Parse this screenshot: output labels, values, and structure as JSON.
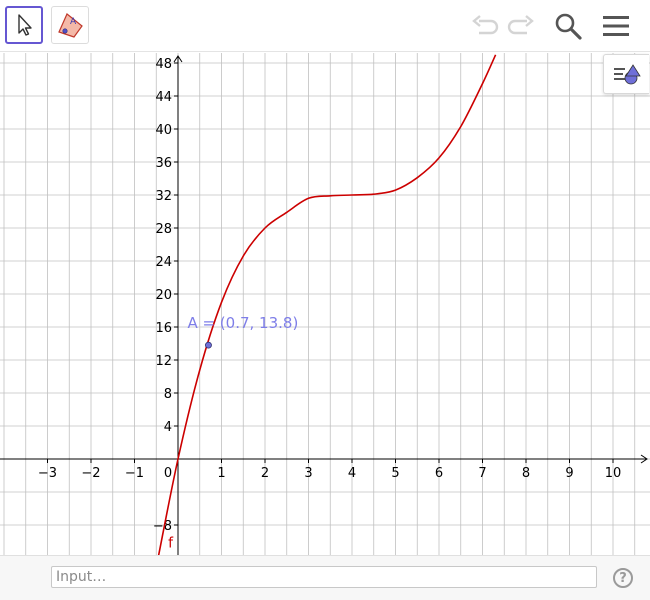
{
  "toolbar": {
    "tools": [
      {
        "icon": "cursor-arrow-icon",
        "active": true
      },
      {
        "icon": "polygon-tool-icon",
        "active": false
      }
    ],
    "right_icons": [
      "undo-icon",
      "redo-icon",
      "search-icon",
      "hamburger-menu-icon"
    ]
  },
  "style_bar_icon": "style-bar-toggle-icon",
  "input_bar": {
    "placeholder": "Input…",
    "help_label": "?"
  },
  "colors": {
    "accent": "#6557d2",
    "curve": "#cc0000",
    "point": "#6f6fd8",
    "point_label": "#7e7ee8",
    "grid": "#c0c0c0",
    "axis": "#000000"
  },
  "chart_data": {
    "type": "line",
    "grid": true,
    "xlim": [
      -4,
      10.5
    ],
    "ylim": [
      -11.8,
      49
    ],
    "x_ticks": [
      -3,
      -2,
      -1,
      0,
      1,
      2,
      3,
      4,
      5,
      6,
      7,
      8,
      9,
      10
    ],
    "x_tick_labels": [
      "−3",
      "−2",
      "−1",
      "0",
      "1",
      "2",
      "3",
      "4",
      "5",
      "6",
      "7",
      "8",
      "9",
      "10"
    ],
    "y_ticks": [
      -8,
      4,
      8,
      12,
      16,
      20,
      24,
      28,
      32,
      36,
      40,
      44,
      48
    ],
    "y_tick_labels": [
      "−8",
      "4",
      "8",
      "12",
      "16",
      "20",
      "24",
      "28",
      "32",
      "36",
      "40",
      "44",
      "48"
    ],
    "series": [
      {
        "name": "f",
        "x": [
          -0.45,
          0,
          0.5,
          1,
          1.5,
          2,
          2.5,
          3,
          3.5,
          4,
          4.5,
          5,
          5.5,
          6,
          6.5,
          7,
          7.3
        ],
        "y": [
          -11.8,
          0,
          10.8,
          19,
          24.6,
          28,
          29.9,
          31.6,
          31.9,
          32,
          32.1,
          32.6,
          34.1,
          36.5,
          40.3,
          45.5,
          49
        ]
      }
    ],
    "point": {
      "name": "A",
      "x": 0.7,
      "y": 13.8,
      "label": "A = (0.7, 13.8)"
    }
  }
}
